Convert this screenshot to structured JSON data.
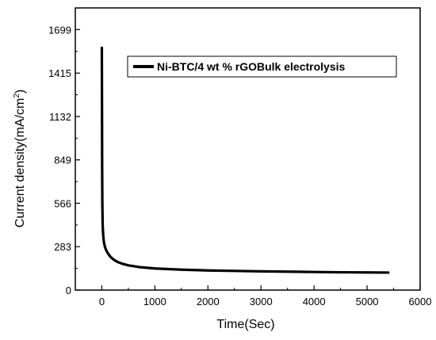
{
  "chart_data": {
    "type": "line",
    "xlabel": "Time(Sec)",
    "ylabel_main": "Current density(mA/cm",
    "ylabel_sup": "2",
    "ylabel_close": ")",
    "xlim": [
      -500,
      6000
    ],
    "ylim": [
      0,
      1840
    ],
    "xticks": [
      0,
      1000,
      2000,
      3000,
      4000,
      5000,
      6000
    ],
    "yticks": [
      0,
      283,
      566,
      849,
      1132,
      1415,
      1699
    ],
    "legend": {
      "position": "top-right"
    },
    "series": [
      {
        "name": "Ni-BTC/4 wt % rGOBulk electrolysis",
        "color": "#000000",
        "x": [
          0,
          3,
          6,
          10,
          15,
          20,
          30,
          40,
          60,
          80,
          100,
          130,
          160,
          200,
          250,
          300,
          400,
          500,
          700,
          1000,
          1500,
          2000,
          2500,
          3000,
          3500,
          4000,
          4500,
          5000,
          5400
        ],
        "y": [
          1580,
          1200,
          800,
          560,
          440,
          390,
          340,
          310,
          280,
          262,
          248,
          232,
          218,
          205,
          192,
          183,
          170,
          161,
          150,
          141,
          133,
          128,
          125,
          122,
          120,
          118,
          116,
          115,
          114
        ]
      }
    ]
  }
}
